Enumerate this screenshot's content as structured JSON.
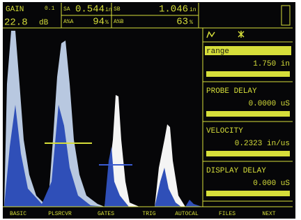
{
  "header": {
    "gain": {
      "label": "GAIN",
      "step": "0.1",
      "value": "22.8",
      "unit": "dB"
    },
    "readings": [
      {
        "label": "SA",
        "value": "0.544",
        "unit": "in"
      },
      {
        "label": "SB",
        "value": "1.046",
        "unit": "in"
      },
      {
        "label": "A%A",
        "value": "94",
        "unit": "%"
      },
      {
        "label": "A%B",
        "value": "63",
        "unit": "%"
      }
    ]
  },
  "menu": [
    {
      "label": "range",
      "value": "1.750 in"
    },
    {
      "label": "PROBE DELAY",
      "value": "0.0000 uS"
    },
    {
      "label": "VELOCITY",
      "value": "0.2323 in/us"
    },
    {
      "label": "DISPLAY DELAY",
      "value": "0.000 uS"
    }
  ],
  "tabs": [
    "BASIC",
    "PLSRCVR",
    "GATES",
    "TRIG",
    "AUTOCAL",
    "FILES",
    "NEXT"
  ]
}
